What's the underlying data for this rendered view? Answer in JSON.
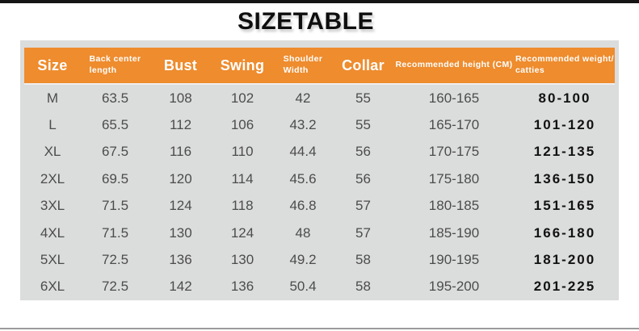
{
  "title": "SIZETABLE",
  "colors": {
    "header_bg": "#ee8c2e",
    "header_text": "#ffffff",
    "card_bg": "#dbdcdc",
    "body_text": "#4c4c4c",
    "weight_text": "#121212",
    "top_bar": "#151515",
    "bottom_line": "#9b9b9b"
  },
  "table": {
    "columns": [
      {
        "key": "size",
        "lines": [
          "Size"
        ],
        "style": "big"
      },
      {
        "key": "back-center-length",
        "lines": [
          "Back center",
          "length"
        ],
        "style": "small"
      },
      {
        "key": "bust",
        "lines": [
          "Bust"
        ],
        "style": "big"
      },
      {
        "key": "swing",
        "lines": [
          "Swing"
        ],
        "style": "big"
      },
      {
        "key": "shoulder-width",
        "lines": [
          "Shoulder",
          "Width"
        ],
        "style": "small"
      },
      {
        "key": "collar",
        "lines": [
          "Collar"
        ],
        "style": "big"
      },
      {
        "key": "recommended-height",
        "lines": [
          "Recommended height (CM)"
        ],
        "style": "small"
      },
      {
        "key": "recommended-weight",
        "lines": [
          "Recommended weight/",
          "catties"
        ],
        "style": "small"
      }
    ],
    "rows": [
      [
        "M",
        "63.5",
        "108",
        "102",
        "42",
        "55",
        "160-165",
        "80-100"
      ],
      [
        "L",
        "65.5",
        "112",
        "106",
        "43.2",
        "55",
        "165-170",
        "101-120"
      ],
      [
        "XL",
        "67.5",
        "116",
        "110",
        "44.4",
        "56",
        "170-175",
        "121-135"
      ],
      [
        "2XL",
        "69.5",
        "120",
        "114",
        "45.6",
        "56",
        "175-180",
        "136-150"
      ],
      [
        "3XL",
        "71.5",
        "124",
        "118",
        "46.8",
        "57",
        "180-185",
        "151-165"
      ],
      [
        "4XL",
        "71.5",
        "130",
        "124",
        "48",
        "57",
        "185-190",
        "166-180"
      ],
      [
        "5XL",
        "72.5",
        "136",
        "130",
        "49.2",
        "58",
        "190-195",
        "181-200"
      ],
      [
        "6XL",
        "72.5",
        "142",
        "136",
        "50.4",
        "58",
        "195-200",
        "201-225"
      ]
    ]
  }
}
